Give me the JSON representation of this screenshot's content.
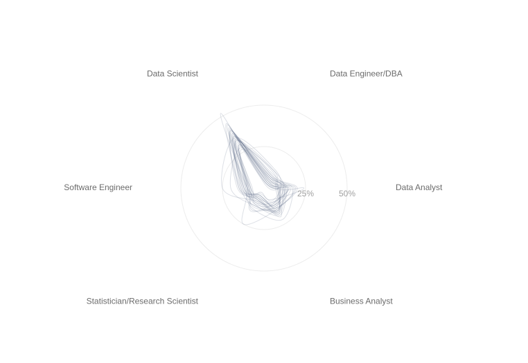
{
  "chart_data": {
    "type": "radar",
    "title": "",
    "axes": [
      "Data Scientist",
      "Data Engineer/DBA",
      "Data Analyst",
      "Business Analyst",
      "Statistician/Research Scientist",
      "Software Engineer"
    ],
    "ticks": [
      {
        "value": 25,
        "label": "25%"
      },
      {
        "value": 50,
        "label": "50%"
      }
    ],
    "rmax": 50,
    "grid": true,
    "legend": "none",
    "line_color": "#64748b",
    "series": [
      {
        "values": [
          52,
          3,
          24,
          8,
          3,
          10
        ]
      },
      {
        "values": [
          35,
          8,
          12,
          18,
          7,
          8
        ]
      },
      {
        "values": [
          30,
          5,
          18,
          15,
          25,
          10
        ]
      },
      {
        "values": [
          40,
          6,
          10,
          14,
          5,
          12
        ]
      },
      {
        "values": [
          33,
          12,
          8,
          20,
          8,
          15
        ]
      },
      {
        "values": [
          38,
          4,
          15,
          10,
          10,
          9
        ]
      },
      {
        "values": [
          28,
          7,
          9,
          16,
          12,
          20
        ]
      },
      {
        "values": [
          42,
          3,
          14,
          12,
          6,
          11
        ]
      },
      {
        "values": [
          36,
          9,
          11,
          17,
          9,
          13
        ]
      },
      {
        "values": [
          31,
          6,
          16,
          13,
          15,
          8
        ]
      },
      {
        "values": [
          45,
          2,
          10,
          9,
          4,
          14
        ]
      },
      {
        "values": [
          34,
          10,
          13,
          19,
          11,
          7
        ]
      },
      {
        "values": [
          39,
          5,
          9,
          11,
          7,
          16
        ]
      },
      {
        "values": [
          29,
          8,
          20,
          14,
          13,
          10
        ]
      },
      {
        "values": [
          37,
          4,
          12,
          16,
          8,
          9
        ]
      },
      {
        "values": [
          32,
          11,
          7,
          18,
          10,
          12
        ]
      },
      {
        "values": [
          41,
          6,
          15,
          10,
          5,
          8
        ]
      },
      {
        "values": [
          35,
          13,
          10,
          12,
          9,
          25
        ]
      },
      {
        "values": [
          27,
          7,
          17,
          22,
          14,
          11
        ]
      },
      {
        "values": [
          44,
          3,
          11,
          13,
          6,
          10
        ]
      },
      {
        "values": [
          33,
          9,
          14,
          15,
          12,
          14
        ]
      },
      {
        "values": [
          38,
          5,
          8,
          17,
          7,
          12
        ]
      },
      {
        "values": [
          30,
          12,
          12,
          11,
          16,
          9
        ]
      },
      {
        "values": [
          36,
          7,
          19,
          14,
          8,
          13
        ]
      },
      {
        "values": [
          40,
          4,
          9,
          16,
          5,
          15
        ]
      },
      {
        "values": [
          34,
          8,
          13,
          12,
          11,
          10
        ]
      }
    ]
  }
}
